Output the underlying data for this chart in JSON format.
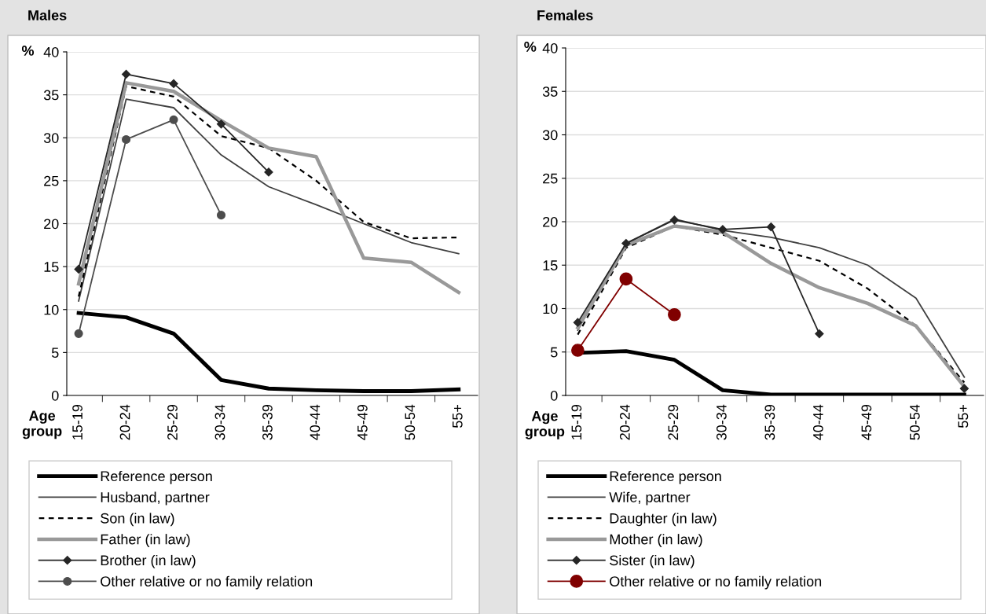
{
  "chart_data": [
    {
      "type": "line",
      "title": "Males",
      "ylabel": "%",
      "xlabel": "Age group",
      "categories": [
        "15-19",
        "20-24",
        "25-29",
        "30-34",
        "35-39",
        "40-44",
        "45-49",
        "50-54",
        "55+"
      ],
      "ylim": [
        0,
        40
      ],
      "yticks": [
        0,
        5,
        10,
        15,
        20,
        25,
        30,
        35,
        40
      ],
      "grid": "y",
      "legend": "bottom",
      "series": [
        {
          "name": "Reference person",
          "color": "#000000",
          "line_style": "solid",
          "marker": "none",
          "values": [
            9.6,
            9.1,
            7.2,
            1.8,
            0.8,
            0.6,
            0.5,
            0.5,
            0.7
          ]
        },
        {
          "name": "Husband, partner",
          "color": "#404040",
          "line_style": "solid",
          "marker": "none",
          "values": [
            11,
            34.5,
            33.5,
            28,
            24.3,
            22.2,
            20,
            17.8,
            16.5
          ]
        },
        {
          "name": "Son (in law)",
          "color": "#000000",
          "line_style": "dashed",
          "marker": "none",
          "values": [
            11.5,
            36,
            34.8,
            30.2,
            28.8,
            25,
            20.2,
            18.3,
            18.4
          ]
        },
        {
          "name": "Father (in law)",
          "color": "#999999",
          "line_style": "solid",
          "marker": "none",
          "values": [
            13,
            36.4,
            35.4,
            32,
            28.8,
            27.8,
            16,
            15.5,
            12
          ]
        },
        {
          "name": "Brother (in law)",
          "color": "#262626",
          "line_style": "solid",
          "marker": "diamond",
          "values": [
            14.7,
            37.4,
            36.3,
            31.6,
            26,
            null,
            null,
            null,
            null
          ]
        },
        {
          "name": "Other relative or no family relation",
          "color": "#4d4d4d",
          "line_style": "solid",
          "marker": "circle",
          "values": [
            7.2,
            29.8,
            32.1,
            21,
            null,
            null,
            null,
            null,
            null
          ]
        }
      ]
    },
    {
      "type": "line",
      "title": "Females",
      "ylabel": "%",
      "xlabel": "Age group",
      "categories": [
        "15-19",
        "20-24",
        "25-29",
        "30-34",
        "35-39",
        "40-44",
        "45-49",
        "50-54",
        "55+"
      ],
      "ylim": [
        0,
        40
      ],
      "yticks": [
        0,
        5,
        10,
        15,
        20,
        25,
        30,
        35,
        40
      ],
      "grid": "y",
      "legend": "bottom",
      "series": [
        {
          "name": "Reference person",
          "color": "#000000",
          "line_style": "solid",
          "marker": "none",
          "values": [
            4.9,
            5.1,
            4.1,
            0.6,
            0.1,
            0.1,
            0.1,
            0.1,
            0.1
          ]
        },
        {
          "name": "Wife, partner",
          "color": "#404040",
          "line_style": "solid",
          "marker": "none",
          "values": [
            7.5,
            17.5,
            20.3,
            19,
            18.2,
            17,
            15,
            11.2,
            2.1
          ]
        },
        {
          "name": "Daughter (in law)",
          "color": "#000000",
          "line_style": "dashed",
          "marker": "none",
          "values": [
            7,
            17,
            19.5,
            18.5,
            17,
            15.5,
            12.3,
            8,
            1.5
          ]
        },
        {
          "name": "Mother (in law)",
          "color": "#999999",
          "line_style": "solid",
          "marker": "none",
          "values": [
            7.8,
            17.3,
            19.5,
            18.8,
            15.2,
            12.4,
            10.6,
            8,
            1
          ]
        },
        {
          "name": "Sister (in law)",
          "color": "#262626",
          "line_style": "solid",
          "marker": "diamond",
          "values": [
            8.4,
            17.5,
            20.2,
            19.1,
            19.4,
            7.1,
            null,
            null,
            0.8
          ]
        },
        {
          "name": "Other relative or no family relation",
          "color": "#800000",
          "line_style": "solid",
          "marker": "circle",
          "values": [
            5.2,
            13.4,
            9.3,
            null,
            null,
            null,
            null,
            null,
            null
          ]
        }
      ]
    }
  ]
}
